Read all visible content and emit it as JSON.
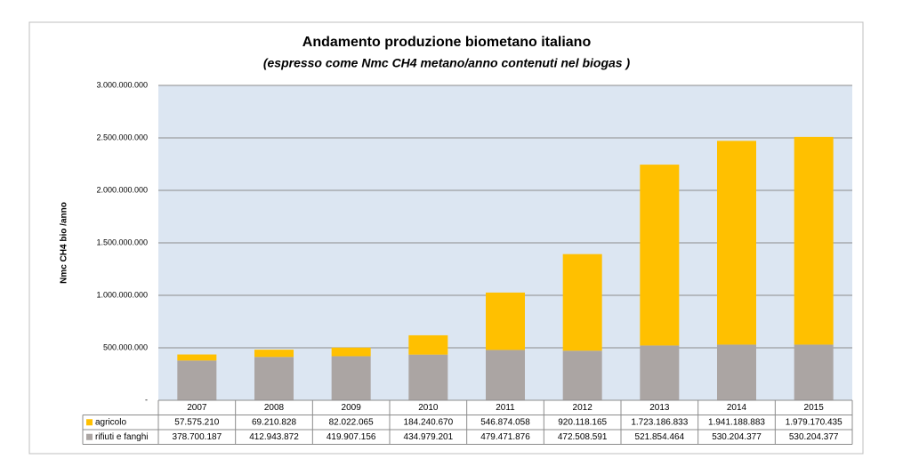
{
  "chart_data": {
    "type": "stacked-bar",
    "title": "Andamento produzione biometano italiano",
    "subtitle": "(espresso come  Nmc CH4 metano/anno contenuti nel biogas )",
    "y_label": "Nmc CH4 bio /anno",
    "categories": [
      "2007",
      "2008",
      "2009",
      "2010",
      "2011",
      "2012",
      "2013",
      "2014",
      "2015"
    ],
    "series": [
      {
        "name": "agricolo",
        "color": "#ffc000",
        "values": [
          57575210,
          69210828,
          82022065,
          184240670,
          546874058,
          920118165,
          1723186833,
          1941188883,
          1979170435
        ],
        "value_labels": [
          "57.575.210",
          "69.210.828",
          "82.022.065",
          "184.240.670",
          "546.874.058",
          "920.118.165",
          "1.723.186.833",
          "1.941.188.883",
          "1.979.170.435"
        ]
      },
      {
        "name": "rifiuti e fanghi",
        "color": "#aba5a3",
        "values": [
          378700187,
          412943872,
          419907156,
          434979201,
          479471876,
          472508591,
          521854464,
          530204377,
          530204377
        ],
        "value_labels": [
          "378.700.187",
          "412.943.872",
          "419.907.156",
          "434.979.201",
          "479.471.876",
          "472.508.591",
          "521.854.464",
          "530.204.377",
          "530.204.377"
        ]
      }
    ],
    "stack_order": [
      "rifiuti e fanghi",
      "agricolo"
    ],
    "ylim": [
      0,
      3000000000
    ],
    "yticks": [
      {
        "value": 0,
        "label": "-"
      },
      {
        "value": 500000000,
        "label": "500.000.000"
      },
      {
        "value": 1000000000,
        "label": "1.000.000.000"
      },
      {
        "value": 1500000000,
        "label": "1.500.000.000"
      },
      {
        "value": 2000000000,
        "label": "2.000.000.000"
      },
      {
        "value": 2500000000,
        "label": "2.500.000.000"
      },
      {
        "value": 3000000000,
        "label": "3.000.000.000"
      }
    ],
    "grid": true,
    "legend": "table"
  }
}
